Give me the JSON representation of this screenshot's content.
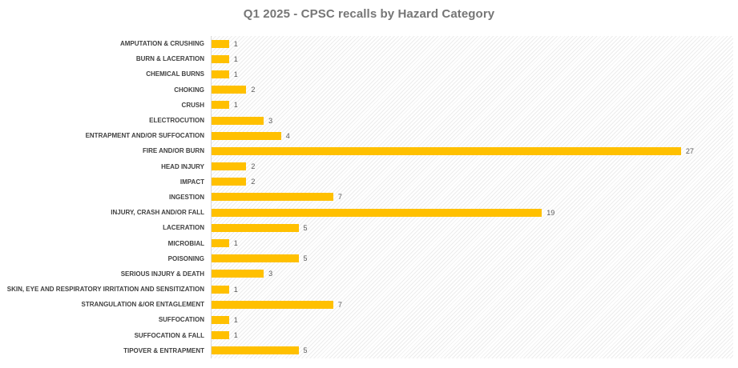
{
  "chart_data": {
    "type": "bar",
    "orientation": "horizontal",
    "title": "Q1 2025 - CPSC recalls by Hazard Category",
    "categories": [
      "AMPUTATION & CRUSHING",
      "BURN & LACERATION",
      "CHEMICAL BURNS",
      "CHOKING",
      "CRUSH",
      "ELECTROCUTION",
      "ENTRAPMENT AND/OR SUFFOCATION",
      "FIRE AND/OR BURN",
      "HEAD INJURY",
      "IMPACT",
      "INGESTION",
      "INJURY, CRASH AND/OR FALL",
      "LACERATION",
      "MICROBIAL",
      "POISONING",
      "SERIOUS INJURY & DEATH",
      "SKIN, EYE AND RESPIRATORY IRRITATION AND SENSITIZATION",
      "STRANGULATION &/OR ENTAGLEMENT",
      "SUFFOCATION",
      "SUFFOCATION & FALL",
      "TIPOVER & ENTRAPMENT"
    ],
    "values": [
      1,
      1,
      1,
      2,
      1,
      3,
      4,
      27,
      2,
      2,
      7,
      19,
      5,
      1,
      5,
      3,
      1,
      7,
      1,
      1,
      5
    ],
    "xlabel": "",
    "ylabel": "",
    "xlim": [
      0,
      30
    ],
    "grid": false,
    "legend": false,
    "data_labels": true,
    "colors": {
      "bar": "#FFC000",
      "title": "#767676",
      "category_label": "#404040",
      "value_label": "#595959",
      "axis_line": "#d9d9d9",
      "plot_hatch": "#ececec"
    }
  }
}
